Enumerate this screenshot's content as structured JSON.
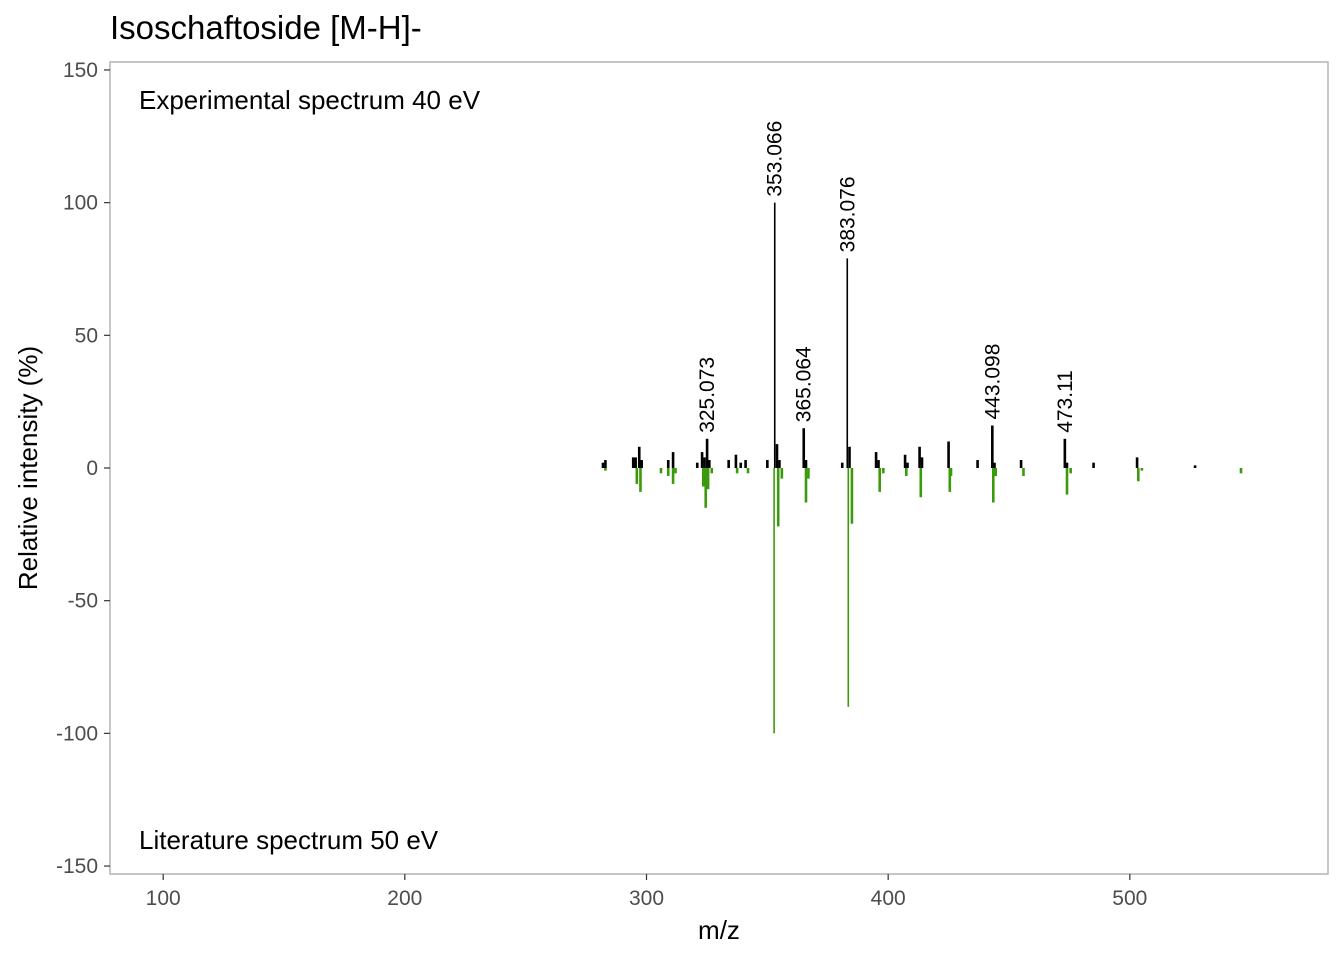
{
  "chart_data": {
    "type": "bar",
    "title": "Isoschaftoside [M-H]-",
    "xlabel": "m/z",
    "ylabel": "Relative intensity (%)",
    "xlim": [
      78,
      582
    ],
    "ylim": [
      -153,
      153
    ],
    "x_ticks": [
      100,
      200,
      300,
      400,
      500
    ],
    "y_ticks": [
      150,
      100,
      50,
      0,
      -50,
      -100,
      -150
    ],
    "grid": false,
    "annotations": {
      "top": "Experimental spectrum 40 eV",
      "bottom": "Literature spectrum 50 eV"
    },
    "colors": {
      "experimental": "#000000",
      "literature": "#3a9a0c",
      "frame": "#b3b3b3"
    },
    "series": [
      {
        "name": "Experimental spectrum 40 eV",
        "x": [
          282.0,
          283.0,
          294.5,
          295.5,
          297.0,
          298.0,
          309.0,
          311.0,
          321.0,
          323.0,
          324.0,
          325.073,
          326.0,
          334.0,
          337.0,
          339.0,
          341.0,
          350.0,
          353.066,
          354.0,
          355.0,
          365.064,
          366.0,
          381.0,
          383.076,
          384.0,
          395.0,
          396.0,
          407.0,
          408.0,
          413.0,
          414.0,
          425.0,
          437.0,
          443.098,
          444.0,
          455.0,
          473.11,
          474.0,
          485.0,
          503.0,
          527.0
        ],
        "y": [
          2,
          3,
          4,
          4,
          8,
          3,
          3,
          6,
          2,
          6,
          4,
          11,
          3,
          3,
          5,
          2,
          3,
          3,
          100,
          9,
          3,
          15,
          3,
          2,
          79,
          8,
          6,
          3,
          5,
          2,
          8,
          4,
          10,
          3,
          16,
          2,
          3,
          11,
          2,
          2,
          4,
          1
        ],
        "labels": [
          {
            "x": 325.073,
            "text": "325.073"
          },
          {
            "x": 353.066,
            "text": "353.066"
          },
          {
            "x": 365.064,
            "text": "365.064"
          },
          {
            "x": 383.076,
            "text": "383.076"
          },
          {
            "x": 443.098,
            "text": "443.098"
          },
          {
            "x": 473.11,
            "text": "473.11"
          }
        ]
      },
      {
        "name": "Literature spectrum 50 eV",
        "x": [
          283.0,
          296.0,
          297.5,
          306.0,
          309.0,
          311.0,
          312.0,
          323.5,
          324.5,
          325.5,
          327.0,
          337.5,
          342.0,
          352.8,
          354.5,
          356.0,
          366.0,
          367.0,
          383.5,
          385.0,
          396.5,
          398.0,
          407.5,
          413.5,
          425.5,
          426.0,
          443.5,
          444.5,
          456.0,
          474.0,
          475.5,
          503.5,
          505.0,
          546.0
        ],
        "y": [
          -1,
          -6,
          -9,
          -2,
          -3,
          -6,
          -2,
          -7,
          -15,
          -8,
          -2,
          -2,
          -2,
          -100,
          -22,
          -4,
          -13,
          -4,
          -90,
          -21,
          -9,
          -2,
          -3,
          -11,
          -9,
          -3,
          -13,
          -3,
          -3,
          -10,
          -2,
          -5,
          -1,
          -2
        ]
      }
    ]
  }
}
